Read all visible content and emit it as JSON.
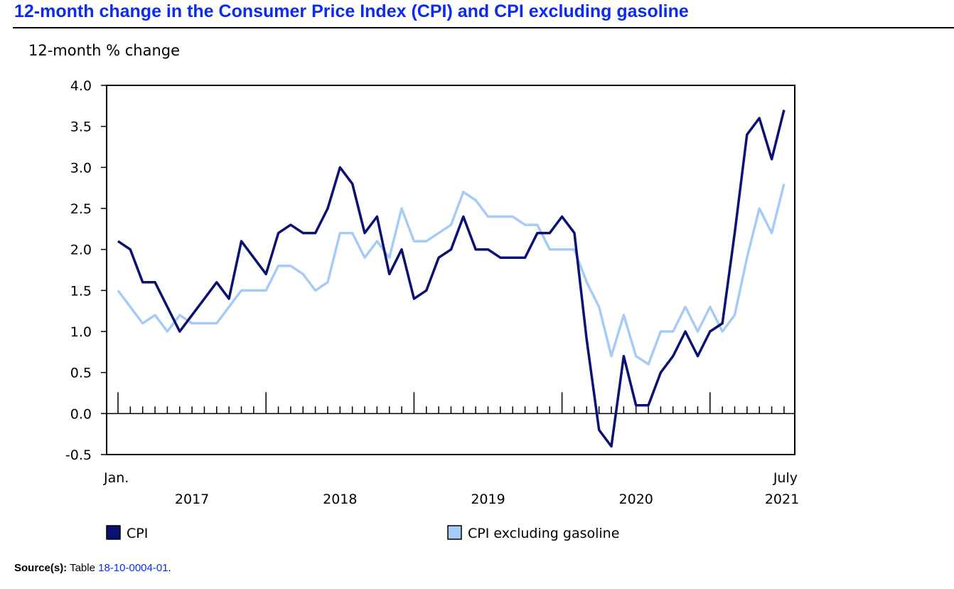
{
  "chart_data": {
    "type": "line",
    "title": "12-month change in the Consumer Price Index (CPI) and CPI excluding gasoline",
    "ylabel": "12-month % change",
    "ylim": [
      -0.5,
      4.0
    ],
    "y_ticks": [
      "4.0",
      "3.5",
      "3.0",
      "2.5",
      "2.0",
      "1.5",
      "1.0",
      "0.5",
      "0.0",
      "-0.5"
    ],
    "x_start_label": "Jan.",
    "x_end_label": "July",
    "year_labels": [
      "2017",
      "2018",
      "2019",
      "2020",
      "2021"
    ],
    "months_count": 55,
    "series": [
      {
        "name": "CPI",
        "color": "#0a1172",
        "values": [
          2.1,
          2.0,
          1.6,
          1.6,
          1.3,
          1.0,
          1.2,
          1.4,
          1.6,
          1.4,
          2.1,
          1.9,
          1.7,
          2.2,
          2.3,
          2.2,
          2.2,
          2.5,
          3.0,
          2.8,
          2.2,
          2.4,
          1.7,
          2.0,
          1.4,
          1.5,
          1.9,
          2.0,
          2.4,
          2.0,
          2.0,
          1.9,
          1.9,
          1.9,
          2.2,
          2.2,
          2.4,
          2.2,
          0.9,
          -0.2,
          -0.4,
          0.7,
          0.1,
          0.1,
          0.5,
          0.7,
          1.0,
          0.7,
          1.0,
          1.1,
          2.2,
          3.4,
          3.6,
          3.1,
          3.7
        ]
      },
      {
        "name": "CPI excluding gasoline",
        "color": "#a6cbf5",
        "values": [
          1.5,
          1.3,
          1.1,
          1.2,
          1.0,
          1.2,
          1.1,
          1.1,
          1.1,
          1.3,
          1.5,
          1.5,
          1.5,
          1.8,
          1.8,
          1.7,
          1.5,
          1.6,
          2.2,
          2.2,
          1.9,
          2.1,
          1.9,
          2.5,
          2.1,
          2.1,
          2.2,
          2.3,
          2.7,
          2.6,
          2.4,
          2.4,
          2.4,
          2.3,
          2.3,
          2.0,
          2.0,
          2.0,
          1.6,
          1.3,
          0.7,
          1.2,
          0.7,
          0.6,
          1.0,
          1.0,
          1.3,
          1.0,
          1.3,
          1.0,
          1.2,
          1.9,
          2.5,
          2.2,
          2.8
        ]
      }
    ]
  },
  "source": {
    "label": "Source(s):",
    "text": "Table",
    "link": "18-10-0004-01",
    "suffix": "."
  }
}
